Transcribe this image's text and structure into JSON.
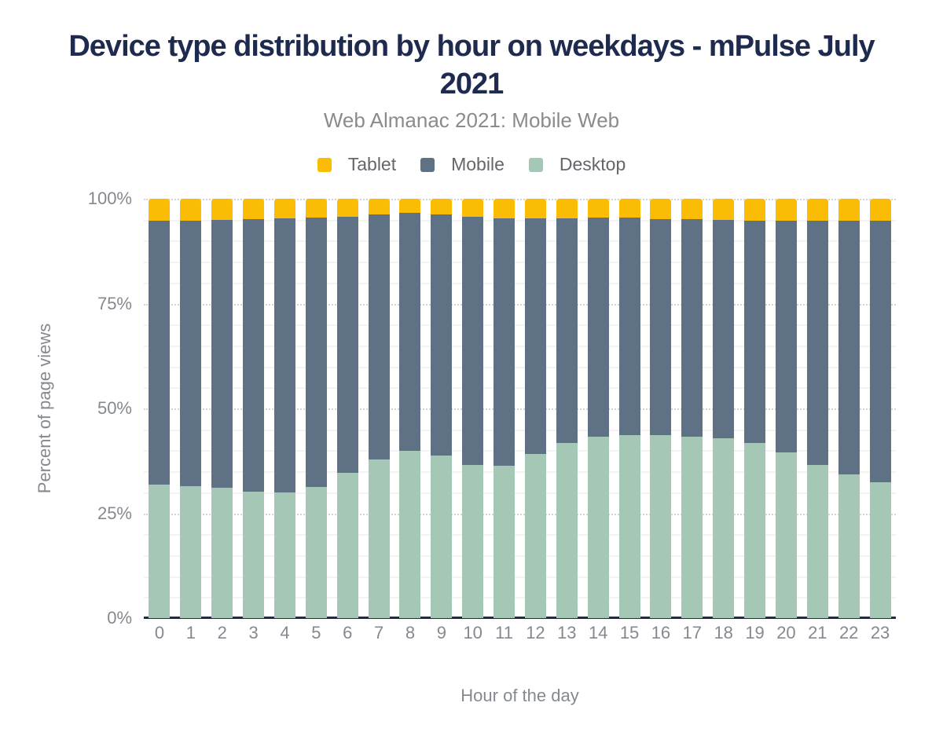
{
  "chart_data": {
    "type": "bar",
    "stacked": true,
    "title": "Device type distribution by hour on weekdays - mPulse July 2021",
    "subtitle": "Web Almanac 2021: Mobile Web",
    "xlabel": "Hour of the day",
    "ylabel": "Percent of page views",
    "categories": [
      "0",
      "1",
      "2",
      "3",
      "4",
      "5",
      "6",
      "7",
      "8",
      "9",
      "10",
      "11",
      "12",
      "13",
      "14",
      "15",
      "16",
      "17",
      "18",
      "19",
      "20",
      "21",
      "22",
      "23"
    ],
    "ylim": [
      0,
      100
    ],
    "y_ticks": [
      {
        "label": "0%",
        "value": 0
      },
      {
        "label": "25%",
        "value": 25
      },
      {
        "label": "50%",
        "value": 50
      },
      {
        "label": "75%",
        "value": 75
      },
      {
        "label": "100%",
        "value": 100
      }
    ],
    "grid": {
      "minor_step": 5,
      "major_step": 25
    },
    "legend_position": "top",
    "series": [
      {
        "name": "Tablet",
        "color": "#fabc05",
        "values": [
          5.3,
          5.3,
          5.1,
          4.9,
          4.6,
          4.4,
          4.3,
          3.7,
          3.4,
          3.8,
          4.3,
          4.6,
          4.7,
          4.7,
          4.4,
          4.4,
          4.9,
          4.9,
          5.0,
          5.3,
          5.3,
          5.3,
          5.3,
          5.3
        ]
      },
      {
        "name": "Mobile",
        "color": "#5f7285",
        "values": [
          62.8,
          63.3,
          63.9,
          65.0,
          65.4,
          64.3,
          61.0,
          58.4,
          56.7,
          57.4,
          59.1,
          59.0,
          56.1,
          53.6,
          52.3,
          52.0,
          51.5,
          51.8,
          52.2,
          52.9,
          55.1,
          58.1,
          60.4,
          62.3
        ]
      },
      {
        "name": "Desktop",
        "color": "#a5c8b6",
        "values": [
          31.9,
          31.4,
          31.0,
          30.1,
          30.0,
          31.3,
          34.7,
          37.9,
          39.9,
          38.8,
          36.6,
          36.4,
          39.2,
          41.7,
          43.3,
          43.6,
          43.6,
          43.3,
          42.8,
          41.8,
          39.6,
          36.6,
          34.3,
          32.4
        ]
      }
    ]
  },
  "colors": {
    "title_text": "#1e2b4e",
    "subtitle_text": "#8b8b8b",
    "legend_text": "#63666b",
    "tick_text": "#85898f",
    "axis_line": "#1e2b4e",
    "grid_minor": "#f3f3f3",
    "grid_major": "#d4d4d4",
    "background": "#ffffff"
  }
}
